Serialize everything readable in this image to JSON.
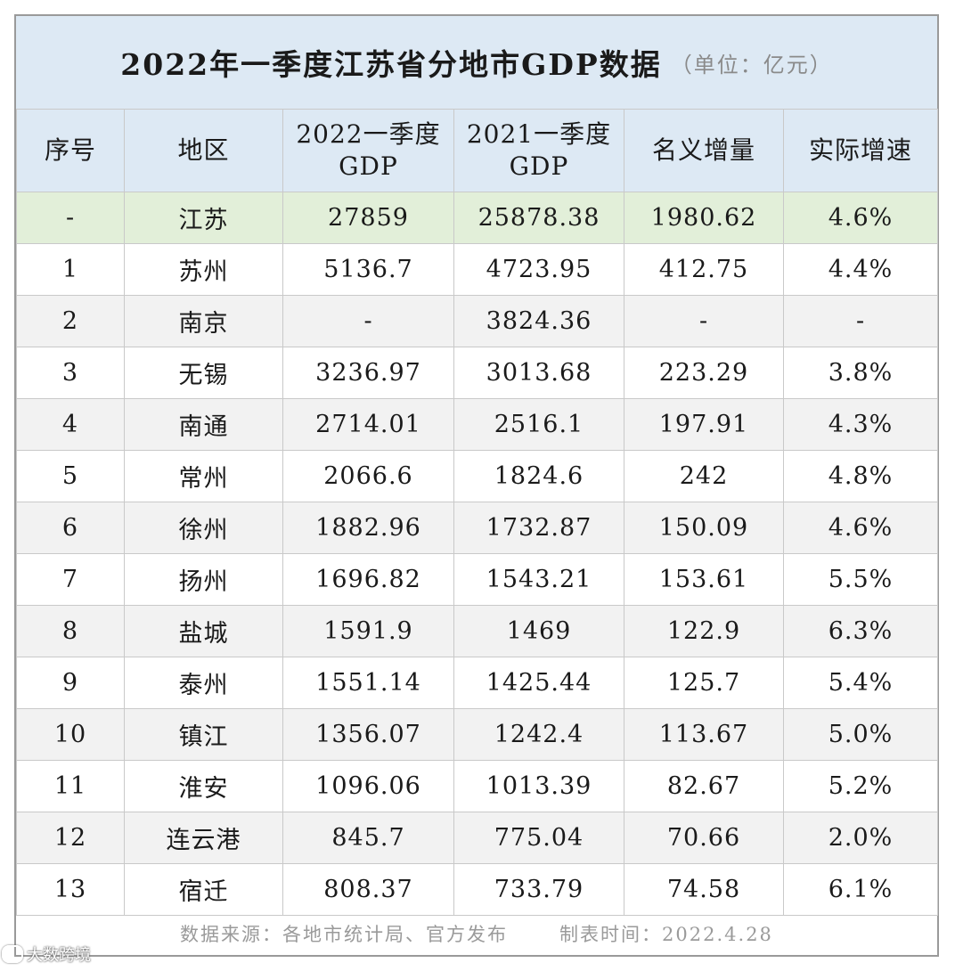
{
  "title": {
    "main": "2022年一季度江苏省分地市GDP数据",
    "unit": "（单位：亿元）"
  },
  "columns": [
    {
      "line1": "序号",
      "line2": ""
    },
    {
      "line1": "地区",
      "line2": ""
    },
    {
      "line1": "2022一季度",
      "line2": "GDP"
    },
    {
      "line1": "2021一季度",
      "line2": "GDP"
    },
    {
      "line1": "名义增量",
      "line2": ""
    },
    {
      "line1": "实际增速",
      "line2": ""
    }
  ],
  "rows": [
    [
      "-",
      "江苏",
      "27859",
      "25878.38",
      "1980.62",
      "4.6%"
    ],
    [
      "1",
      "苏州",
      "5136.7",
      "4723.95",
      "412.75",
      "4.4%"
    ],
    [
      "2",
      "南京",
      "-",
      "3824.36",
      "-",
      "-"
    ],
    [
      "3",
      "无锡",
      "3236.97",
      "3013.68",
      "223.29",
      "3.8%"
    ],
    [
      "4",
      "南通",
      "2714.01",
      "2516.1",
      "197.91",
      "4.3%"
    ],
    [
      "5",
      "常州",
      "2066.6",
      "1824.6",
      "242",
      "4.8%"
    ],
    [
      "6",
      "徐州",
      "1882.96",
      "1732.87",
      "150.09",
      "4.6%"
    ],
    [
      "7",
      "扬州",
      "1696.82",
      "1543.21",
      "153.61",
      "5.5%"
    ],
    [
      "8",
      "盐城",
      "1591.9",
      "1469",
      "122.9",
      "6.3%"
    ],
    [
      "9",
      "泰州",
      "1551.14",
      "1425.44",
      "125.7",
      "5.4%"
    ],
    [
      "10",
      "镇江",
      "1356.07",
      "1242.4",
      "113.67",
      "5.0%"
    ],
    [
      "11",
      "淮安",
      "1096.06",
      "1013.39",
      "82.67",
      "5.2%"
    ],
    [
      "12",
      "连云港",
      "845.7",
      "775.04",
      "70.66",
      "2.0%"
    ],
    [
      "13",
      "宿迁",
      "808.37",
      "733.79",
      "74.58",
      "6.1%"
    ]
  ],
  "footer": {
    "source": "数据来源：各地市统计局、官方发布",
    "time": "制表时间：2022.4.28"
  },
  "watermark": "大数跨境",
  "colors": {
    "header_bg": "#dde9f4",
    "total_row_bg": "#e2efd9",
    "stripe_bg": "#f2f2f2"
  }
}
